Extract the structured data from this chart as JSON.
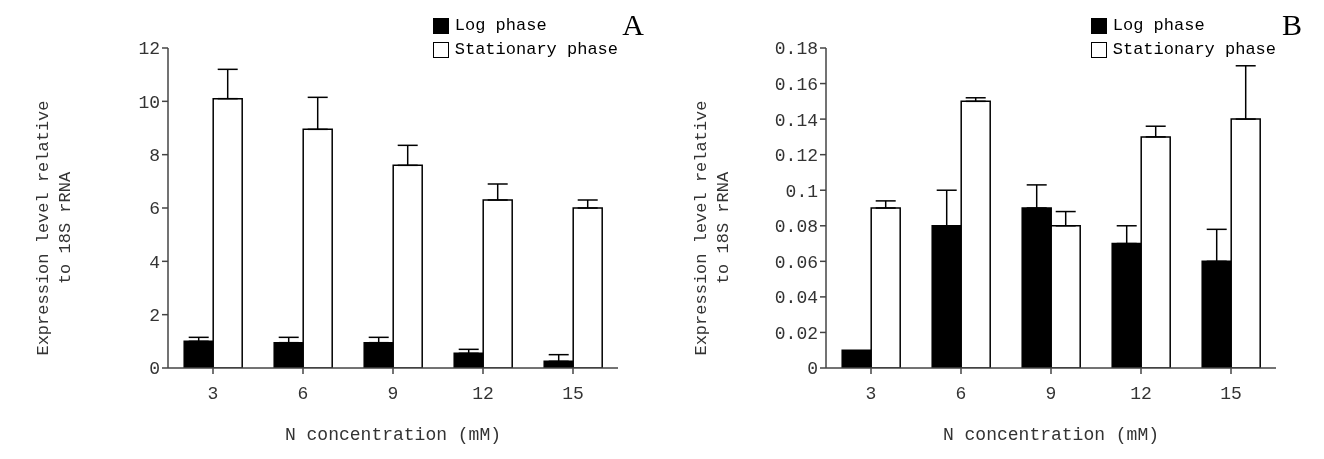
{
  "chart_data": [
    {
      "type": "bar",
      "title": "A",
      "xlabel": "N concentration (mM)",
      "ylabel": "Expression level relative to 18S rRNA",
      "categories": [
        "3",
        "6",
        "9",
        "12",
        "15"
      ],
      "ylim": [
        0,
        12
      ],
      "yticks": [
        0,
        2,
        4,
        6,
        8,
        10,
        12
      ],
      "grid": false,
      "legend": "top right",
      "series": [
        {
          "name": "Log phase",
          "color": "#000000",
          "values": [
            1.0,
            0.95,
            0.95,
            0.55,
            0.25
          ],
          "errors": [
            [
              1.0,
              1.15
            ],
            [
              0.95,
              1.15
            ],
            [
              0.95,
              1.15
            ],
            [
              0.55,
              0.7
            ],
            [
              0.25,
              0.5
            ]
          ]
        },
        {
          "name": "Stationary phase",
          "color": "#ffffff",
          "values": [
            10.1,
            8.95,
            7.6,
            6.3,
            6.0
          ],
          "errors": [
            [
              10.1,
              11.2
            ],
            [
              8.95,
              10.15
            ],
            [
              7.6,
              8.35
            ],
            [
              6.3,
              6.9
            ],
            [
              6.0,
              6.3
            ]
          ]
        }
      ]
    },
    {
      "type": "bar",
      "title": "B",
      "xlabel": "N concentration (mM)",
      "ylabel": "Expression level relative to 18S rRNA",
      "categories": [
        "3",
        "6",
        "9",
        "12",
        "15"
      ],
      "ylim": [
        0,
        0.18
      ],
      "yticks": [
        0,
        0.02,
        0.04,
        0.06,
        0.08,
        0.1,
        0.12,
        0.14,
        0.16,
        0.18
      ],
      "grid": false,
      "legend": "top right",
      "series": [
        {
          "name": "Log phase",
          "color": "#000000",
          "values": [
            0.01,
            0.08,
            0.09,
            0.07,
            0.06
          ],
          "errors": [
            null,
            [
              0.08,
              0.1
            ],
            [
              0.09,
              0.103
            ],
            [
              0.07,
              0.08
            ],
            [
              0.06,
              0.078
            ]
          ]
        },
        {
          "name": "Stationary phase",
          "color": "#ffffff",
          "values": [
            0.09,
            0.15,
            0.08,
            0.13,
            0.14
          ],
          "errors": [
            [
              0.09,
              0.094
            ],
            [
              0.15,
              0.152
            ],
            [
              0.08,
              0.088
            ],
            [
              0.13,
              0.136
            ],
            [
              0.14,
              0.17
            ]
          ]
        }
      ]
    }
  ]
}
